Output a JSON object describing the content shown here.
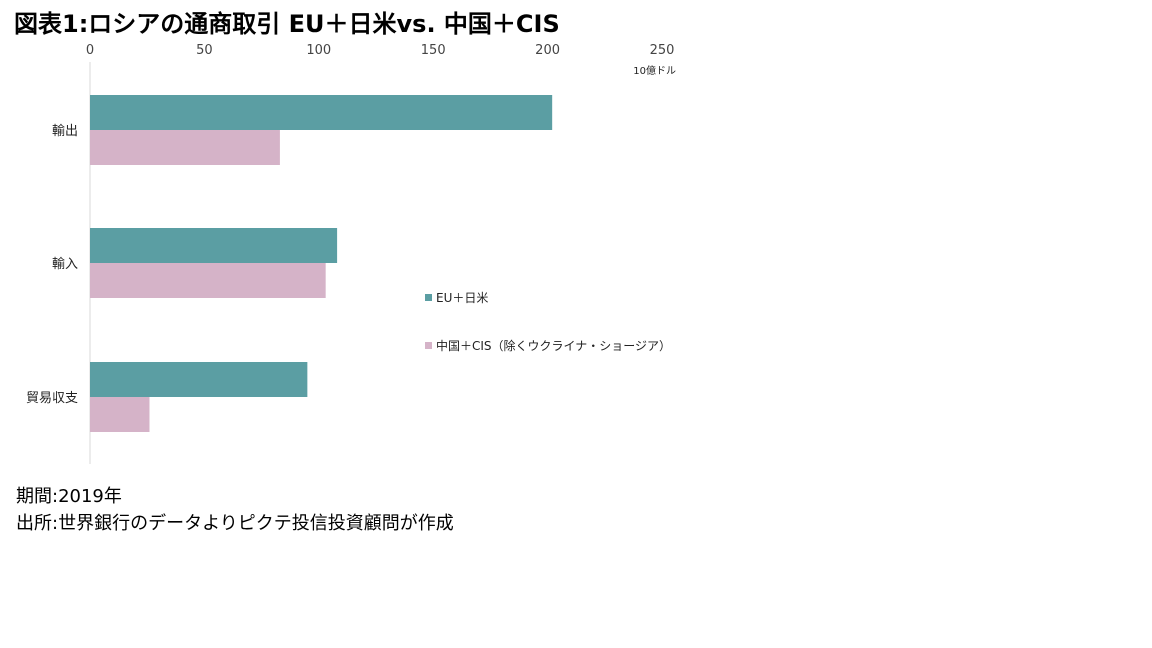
{
  "title": "図表1:ロシアの通商取引 EU＋日米vs. 中国＋CIS",
  "chart_data": {
    "type": "bar",
    "orientation": "horizontal",
    "title": "図表1:ロシアの通商取引 EU＋日米vs. 中国＋CIS",
    "unit": "10億ドル",
    "categories": [
      "輸出",
      "輸入",
      "貿易収支"
    ],
    "series": [
      {
        "name": "EU＋日米",
        "color": "#5b9ea3",
        "values": [
          202,
          108,
          95
        ]
      },
      {
        "name": "中国＋CIS（除くウクライナ・ショージア）",
        "color": "#d5b3c8",
        "values": [
          83,
          103,
          26
        ]
      }
    ],
    "xlim": [
      0,
      250
    ],
    "xticks": [
      0,
      50,
      100,
      150,
      200,
      250
    ],
    "xaxis_position": "top",
    "grid": false,
    "legend_position": "right"
  },
  "footer": {
    "period": "期間:2019年",
    "source": "出所:世界銀行のデータよりピクテ投信投資顧問が作成"
  }
}
